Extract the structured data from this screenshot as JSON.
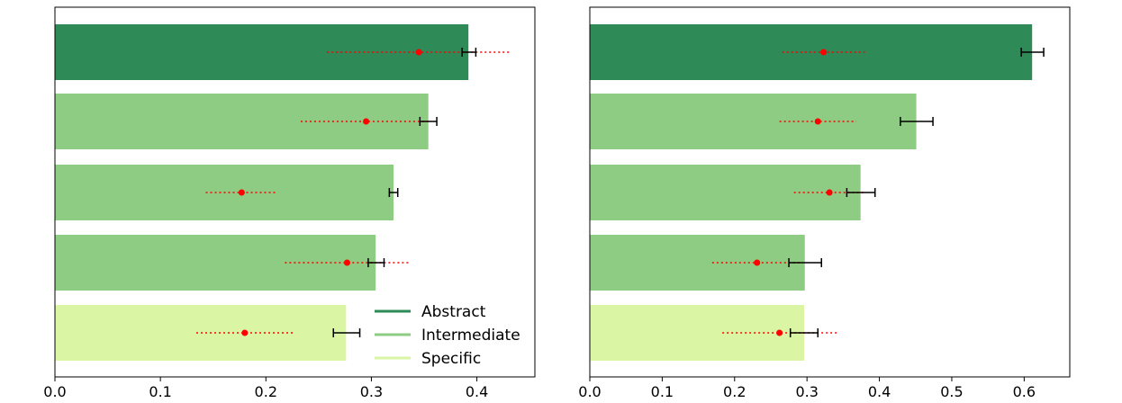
{
  "chart_data": [
    {
      "type": "bar",
      "orientation": "horizontal",
      "xlim": [
        0,
        0.455
      ],
      "xticks": [
        0.0,
        0.1,
        0.2,
        0.3,
        0.4
      ],
      "xtick_labels": [
        "0.0",
        "0.1",
        "0.2",
        "0.3",
        "0.4"
      ],
      "grid": false,
      "legend_placement": "bottom-right",
      "bars": [
        {
          "category": "Abstract",
          "value": 0.392,
          "err_low": 0.386,
          "err_high": 0.399,
          "point": 0.345,
          "point_low": 0.258,
          "point_high": 0.432
        },
        {
          "category": "Intermediate",
          "value": 0.354,
          "err_low": 0.346,
          "err_high": 0.362,
          "point": 0.295,
          "point_low": 0.233,
          "point_high": 0.356
        },
        {
          "category": "Intermediate",
          "value": 0.321,
          "err_low": 0.317,
          "err_high": 0.325,
          "point": 0.177,
          "point_low": 0.143,
          "point_high": 0.211
        },
        {
          "category": "Intermediate",
          "value": 0.304,
          "err_low": 0.297,
          "err_high": 0.312,
          "point": 0.277,
          "point_low": 0.218,
          "point_high": 0.336
        },
        {
          "category": "Specific",
          "value": 0.276,
          "err_low": 0.264,
          "err_high": 0.289,
          "point": 0.18,
          "point_low": 0.134,
          "point_high": 0.227
        }
      ]
    },
    {
      "type": "bar",
      "orientation": "horizontal",
      "xlim": [
        0,
        0.663
      ],
      "xticks": [
        0.0,
        0.1,
        0.2,
        0.3,
        0.4,
        0.5,
        0.6
      ],
      "xtick_labels": [
        "0.0",
        "0.1",
        "0.2",
        "0.3",
        "0.4",
        "0.5",
        "0.6"
      ],
      "grid": false,
      "bars": [
        {
          "category": "Abstract",
          "value": 0.611,
          "err_low": 0.596,
          "err_high": 0.627,
          "point": 0.323,
          "point_low": 0.266,
          "point_high": 0.38
        },
        {
          "category": "Intermediate",
          "value": 0.451,
          "err_low": 0.429,
          "err_high": 0.474,
          "point": 0.315,
          "point_low": 0.262,
          "point_high": 0.368
        },
        {
          "category": "Intermediate",
          "value": 0.374,
          "err_low": 0.355,
          "err_high": 0.394,
          "point": 0.331,
          "point_low": 0.282,
          "point_high": 0.38
        },
        {
          "category": "Intermediate",
          "value": 0.297,
          "err_low": 0.275,
          "err_high": 0.32,
          "point": 0.231,
          "point_low": 0.169,
          "point_high": 0.293
        },
        {
          "category": "Specific",
          "value": 0.296,
          "err_low": 0.277,
          "err_high": 0.315,
          "point": 0.262,
          "point_low": 0.183,
          "point_high": 0.341
        }
      ]
    }
  ],
  "legend": [
    {
      "label": "Abstract",
      "color": "#2e8b57"
    },
    {
      "label": "Intermediate",
      "color": "#8ecb83"
    },
    {
      "label": "Specific",
      "color": "#daf5a4"
    }
  ],
  "colors": {
    "Abstract": "#2e8b57",
    "Intermediate": "#8ecb83",
    "Specific": "#daf5a4",
    "point": "#ff0000",
    "errorbar": "#000000"
  }
}
